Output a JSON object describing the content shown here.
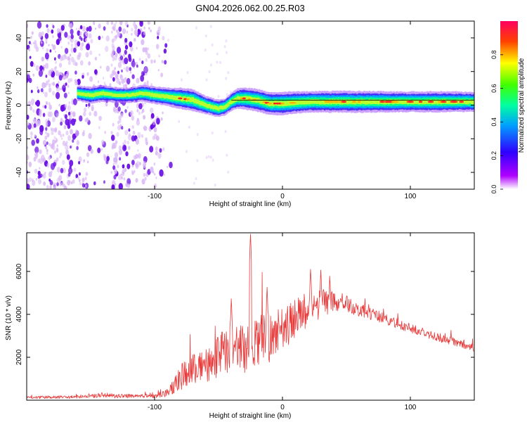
{
  "title": "GN04.2026.062.00.25.R03",
  "colors": {
    "snr_line": "#e83a3a",
    "scatter_light": "#d9b8f5",
    "scatter_dark": "#6b10e6",
    "axis": "#000000"
  },
  "chart_data": [
    {
      "type": "heatmap",
      "name": "spectrogram",
      "xlabel": "Height of straight line (km)",
      "ylabel": "Frequency (Hz)",
      "xlim": [
        -200,
        150
      ],
      "ylim": [
        -50,
        50
      ],
      "xticks": [
        -100,
        0,
        100
      ],
      "yticks": [
        -40,
        -20,
        0,
        20,
        40
      ],
      "colorbar": {
        "label": "Normalized spectral amplitude",
        "range": [
          0,
          1
        ],
        "ticks": [
          0.0,
          0.2,
          0.4,
          0.6,
          0.8
        ]
      },
      "ridge": {
        "x": [
          -160,
          -150,
          -140,
          -130,
          -120,
          -110,
          -100,
          -90,
          -80,
          -70,
          -60,
          -50,
          -45,
          -40,
          -35,
          -30,
          -20,
          -10,
          0,
          20,
          50,
          80,
          100,
          120,
          150
        ],
        "y": [
          7,
          6,
          7,
          6,
          6,
          7,
          6,
          5,
          4,
          3,
          0,
          -2,
          -1,
          2,
          4,
          4,
          3,
          1,
          1,
          2,
          2,
          2,
          2,
          2,
          2
        ],
        "amplitude": [
          0.4,
          0.5,
          0.5,
          0.4,
          0.4,
          0.5,
          0.55,
          0.6,
          0.8,
          0.85,
          0.6,
          0.55,
          0.5,
          0.6,
          0.75,
          0.85,
          0.9,
          0.9,
          0.95,
          0.8,
          0.85,
          0.8,
          0.75,
          0.8,
          0.7
        ],
        "upper_trace_y": 3,
        "upper_trace_xrange": [
          -40,
          150
        ]
      },
      "noise_region_x": [
        -200,
        -90
      ]
    },
    {
      "type": "line",
      "name": "snr",
      "xlabel": "Height of straight line (km)",
      "ylabel": "SNR (10 * v/v)",
      "xlim": [
        -200,
        150
      ],
      "ylim": [
        0,
        7800
      ],
      "xticks": [
        -100,
        0,
        100
      ],
      "yticks": [
        2000,
        4000,
        6000
      ],
      "envelope": {
        "x": [
          -200,
          -170,
          -150,
          -140,
          -130,
          -100,
          -90,
          -85,
          -80,
          -70,
          -60,
          -50,
          -40,
          -30,
          -20,
          -10,
          0,
          10,
          20,
          30,
          40,
          50,
          60,
          80,
          100,
          120,
          150
        ],
        "base": [
          120,
          150,
          180,
          260,
          190,
          200,
          330,
          600,
          1050,
          1500,
          1600,
          2100,
          2400,
          2400,
          2700,
          2900,
          3300,
          3800,
          4250,
          4500,
          4600,
          4500,
          4200,
          3800,
          3350,
          2950,
          2450
        ],
        "noise": [
          60,
          70,
          80,
          120,
          90,
          100,
          180,
          400,
          600,
          700,
          800,
          1000,
          1100,
          1200,
          1200,
          1200,
          1000,
          900,
          800,
          700,
          550,
          400,
          300,
          250,
          220,
          200,
          180
        ]
      },
      "spikes": [
        {
          "x": -25,
          "y": 7800
        },
        {
          "x": -40,
          "y": 4900
        },
        {
          "x": -12,
          "y": 5300
        },
        {
          "x": 22,
          "y": 6300
        },
        {
          "x": 30,
          "y": 6150
        },
        {
          "x": 37,
          "y": 5950
        }
      ]
    }
  ]
}
